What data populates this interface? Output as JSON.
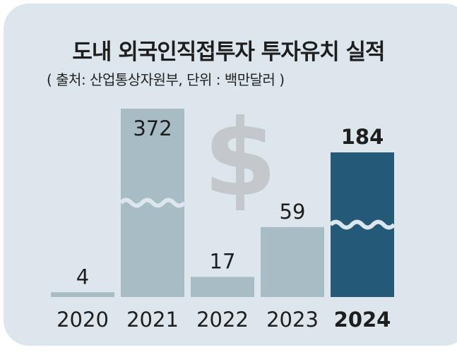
{
  "title": "도내 외국인직접투자 투자유치 실적",
  "subtitle": "( 출처: 산업통상자원부, 단위 : 백만달러 )",
  "colors": {
    "panel": "#dde6ec",
    "bar": "#a8bcc6",
    "highlight": "#245a78",
    "dollar": "#c4c8cc"
  },
  "icon": "dollar-sign-icon",
  "chart_data": {
    "type": "bar",
    "title": "도내 외국인직접투자 투자유치 실적",
    "subtitle": "( 출처: 산업통상자원부, 단위 : 백만달러 )",
    "categories": [
      "2020",
      "2021",
      "2022",
      "2023",
      "2024"
    ],
    "values": [
      4,
      372,
      17,
      59,
      184
    ],
    "highlight": "2024",
    "broken_bars": [
      "2021",
      "2024"
    ],
    "grid": false,
    "legend": "none"
  }
}
